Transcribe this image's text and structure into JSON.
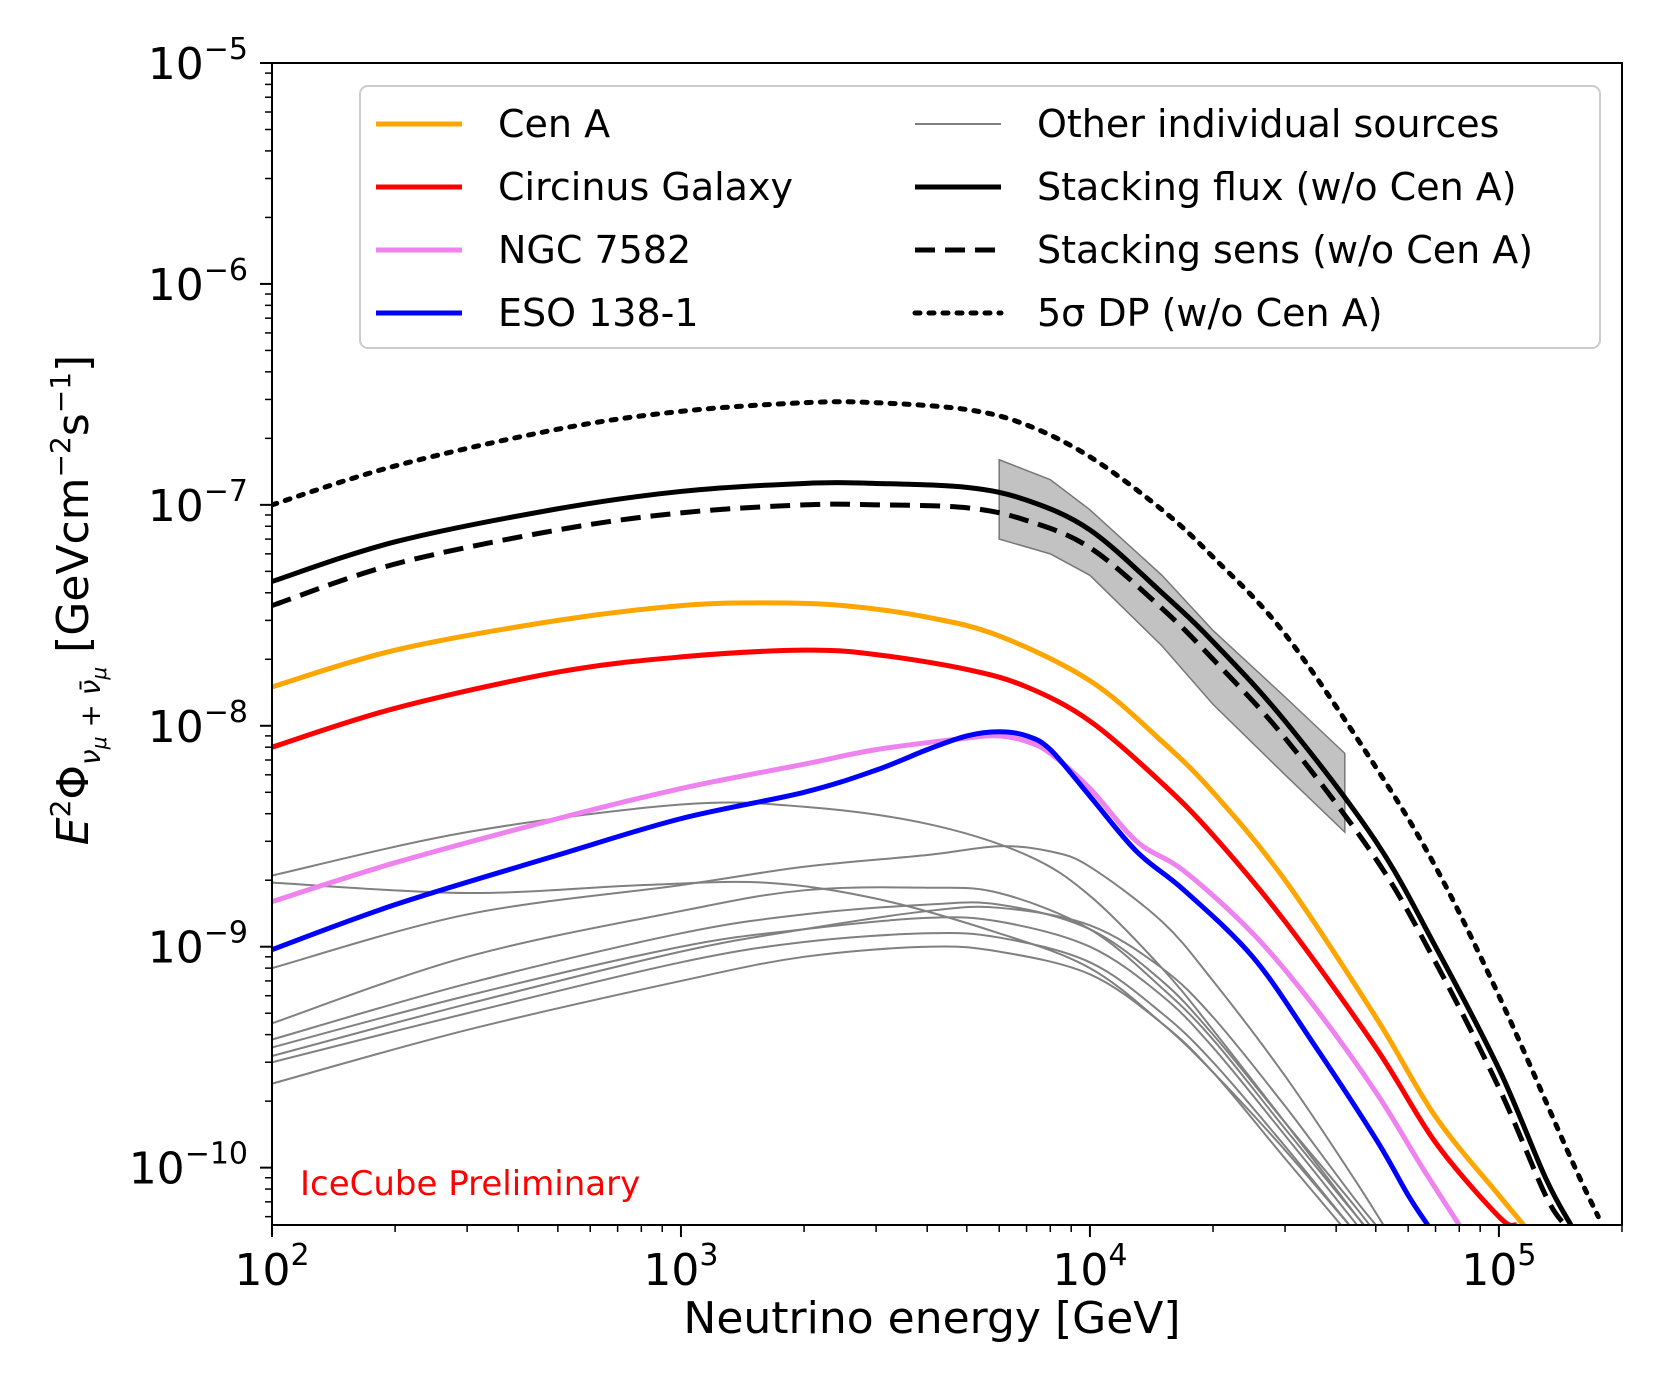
{
  "chart_data": {
    "type": "line",
    "title": "",
    "xlabel": "Neutrino energy [GeV]",
    "ylabel_parts": {
      "main": "E",
      "sup": "2",
      "phi": "Φ",
      "sub": "ν",
      "sub_mu1": "μ",
      "sub_plus": " + ",
      "sub_nubar": "ν̄",
      "sub_mu2": "μ",
      "units_open": " [GeVcm",
      "units_sup1": "−2",
      "units_mid": "s",
      "units_sup2": "−1",
      "units_close": "]"
    },
    "xscale": "log",
    "yscale": "log",
    "xlim": [
      100,
      200000
    ],
    "ylim": [
      5.5e-11,
      1e-05
    ],
    "xticks": [
      {
        "base": "10",
        "exp": "2",
        "value": 100
      },
      {
        "base": "10",
        "exp": "3",
        "value": 1000
      },
      {
        "base": "10",
        "exp": "4",
        "value": 10000
      },
      {
        "base": "10",
        "exp": "5",
        "value": 100000
      }
    ],
    "yticks": [
      {
        "base": "10",
        "exp": "−5",
        "value": 1e-05
      },
      {
        "base": "10",
        "exp": "−6",
        "value": 1e-06
      },
      {
        "base": "10",
        "exp": "−7",
        "value": 1e-07
      },
      {
        "base": "10",
        "exp": "−8",
        "value": 1e-08
      },
      {
        "base": "10",
        "exp": "−9",
        "value": 1e-09
      },
      {
        "base": "10",
        "exp": "−10",
        "value": 1e-10
      }
    ],
    "watermark": "IceCube Preliminary",
    "legend": {
      "placement": "top-right",
      "entries": [
        {
          "label": "Cen A",
          "series": "cen_a"
        },
        {
          "label": "Circinus Galaxy",
          "series": "circinus"
        },
        {
          "label": "NGC 7582",
          "series": "ngc7582"
        },
        {
          "label": "ESO 138-1",
          "series": "eso138"
        },
        {
          "label": "Other individual sources",
          "series": "other"
        },
        {
          "label": "Stacking flux (w/o Cen A)",
          "series": "stack_flux"
        },
        {
          "label": "Stacking sens (w/o Cen A)",
          "series": "stack_sens"
        },
        {
          "label": "5σ DP (w/o Cen A)",
          "series": "dp5"
        }
      ]
    },
    "band": {
      "name": "stacking-flux-uncertainty",
      "color": "#999999",
      "x": [
        6000,
        8000,
        10000,
        15000,
        20000,
        30000,
        42000
      ],
      "upper": [
        1.6e-07,
        1.3e-07,
        9.5e-08,
        4.8e-08,
        2.7e-08,
        1.35e-08,
        7.5e-09
      ],
      "lower": [
        7e-08,
        6e-08,
        4.8e-08,
        2.3e-08,
        1.25e-08,
        6e-09,
        3.3e-09
      ]
    },
    "series": [
      {
        "id": "dp5",
        "name": "5σ DP (w/o Cen A)",
        "color": "#000000",
        "style": "dotted",
        "x": [
          100,
          200,
          500,
          1000,
          2000,
          3000,
          5000,
          7000,
          10000,
          15000,
          20000,
          30000,
          50000,
          70000,
          100000,
          150000,
          175000
        ],
        "y": [
          1e-07,
          1.5e-07,
          2.2e-07,
          2.65e-07,
          2.9e-07,
          2.9e-07,
          2.7e-07,
          2.3e-07,
          1.65e-07,
          9.5e-08,
          5.8e-08,
          2.6e-08,
          6.5e-09,
          2.3e-09,
          6e-10,
          1.1e-10,
          6e-11
        ]
      },
      {
        "id": "stack_flux",
        "name": "Stacking flux (w/o Cen A)",
        "color": "#000000",
        "style": "solid",
        "x": [
          100,
          200,
          500,
          1000,
          2000,
          3000,
          5000,
          7000,
          10000,
          15000,
          20000,
          30000,
          50000,
          70000,
          100000,
          130000,
          150000
        ],
        "y": [
          4.5e-08,
          6.8e-08,
          9.6e-08,
          1.15e-07,
          1.25e-07,
          1.25e-07,
          1.2e-07,
          1.05e-07,
          7.7e-08,
          4e-08,
          2.4e-08,
          1.05e-08,
          3e-09,
          1e-09,
          2.8e-10,
          9e-11,
          5.5e-11
        ]
      },
      {
        "id": "stack_sens",
        "name": "Stacking sens (w/o Cen A)",
        "color": "#000000",
        "style": "dashed",
        "x": [
          100,
          200,
          500,
          1000,
          2000,
          3000,
          5000,
          7000,
          10000,
          15000,
          20000,
          30000,
          50000,
          70000,
          100000,
          130000,
          145000
        ],
        "y": [
          3.5e-08,
          5.4e-08,
          7.7e-08,
          9.2e-08,
          1e-07,
          1e-07,
          9.7e-08,
          8.5e-08,
          6.4e-08,
          3.4e-08,
          2e-08,
          8.8e-09,
          2.5e-09,
          8.5e-10,
          2.3e-10,
          7.5e-11,
          5.5e-11
        ]
      },
      {
        "id": "cen_a",
        "name": "Cen A",
        "color": "#ffa500",
        "style": "solid",
        "x": [
          100,
          200,
          500,
          1000,
          1600,
          2500,
          4000,
          6000,
          10000,
          15000,
          20000,
          30000,
          50000,
          70000,
          100000,
          115000
        ],
        "y": [
          1.5e-08,
          2.2e-08,
          3e-08,
          3.5e-08,
          3.6e-08,
          3.5e-08,
          3.1e-08,
          2.55e-08,
          1.6e-08,
          8.5e-09,
          5e-09,
          2e-09,
          4.8e-10,
          1.7e-10,
          7.5e-11,
          5.5e-11
        ]
      },
      {
        "id": "circinus",
        "name": "Circinus Galaxy",
        "color": "#ff0000",
        "style": "solid",
        "x": [
          100,
          200,
          500,
          1000,
          2000,
          3000,
          5000,
          7000,
          10000,
          15000,
          20000,
          30000,
          50000,
          70000,
          100000,
          110000
        ],
        "y": [
          8e-09,
          1.2e-08,
          1.75e-08,
          2.05e-08,
          2.2e-08,
          2.1e-08,
          1.8e-08,
          1.5e-08,
          1.05e-08,
          5.5e-09,
          3.2e-09,
          1.3e-09,
          3.5e-10,
          1.3e-10,
          6e-11,
          5.5e-11
        ]
      },
      {
        "id": "ngc7582",
        "name": "NGC 7582",
        "color": "#ee82ee",
        "style": "solid",
        "x": [
          100,
          200,
          500,
          1000,
          2000,
          3000,
          5000,
          6000,
          7000,
          8000,
          10000,
          13000,
          17000,
          25000,
          35000,
          50000,
          65000,
          80000
        ],
        "y": [
          1.6e-09,
          2.4e-09,
          3.8e-09,
          5.2e-09,
          6.7e-09,
          7.8e-09,
          8.8e-09,
          9e-09,
          8.5e-09,
          7.5e-09,
          5.2e-09,
          3e-09,
          2.2e-09,
          1.15e-09,
          5.5e-10,
          2.2e-10,
          1e-10,
          5.5e-11
        ]
      },
      {
        "id": "eso138",
        "name": "ESO 138-1",
        "color": "#0000ff",
        "style": "solid",
        "x": [
          100,
          200,
          500,
          1000,
          2000,
          3000,
          4000,
          5000,
          6000,
          7000,
          8000,
          10000,
          13000,
          17000,
          25000,
          35000,
          50000,
          60000,
          67000
        ],
        "y": [
          9.7e-10,
          1.55e-09,
          2.6e-09,
          3.8e-09,
          5e-09,
          6.3e-09,
          7.8e-09,
          9e-09,
          9.4e-09,
          9e-09,
          7.8e-09,
          4.8e-09,
          2.7e-09,
          1.8e-09,
          9e-10,
          3.7e-10,
          1.35e-10,
          7.5e-11,
          5.5e-11
        ]
      },
      {
        "id": "other1",
        "name": "Other individual sources",
        "color": "#808080",
        "style": "thin",
        "x": [
          100,
          300,
          1000,
          2000,
          4000,
          7000,
          10000,
          15000,
          20000,
          30000,
          45000,
          60000
        ],
        "y": [
          2.1e-09,
          3.3e-09,
          4.4e-09,
          4.3e-09,
          3.6e-09,
          2.6e-09,
          1.7e-09,
          8e-10,
          4.2e-10,
          1.6e-10,
          6e-11,
          3e-11
        ]
      },
      {
        "id": "other2",
        "name": "Other individual sources",
        "color": "#808080",
        "style": "thin",
        "x": [
          100,
          300,
          1000,
          2000,
          4000,
          6000,
          8000,
          10000,
          15000,
          20000,
          30000,
          45000,
          58000
        ],
        "y": [
          8e-10,
          1.4e-09,
          1.9e-09,
          2.3e-09,
          2.6e-09,
          2.85e-09,
          2.7e-09,
          2.3e-09,
          1.3e-09,
          7e-10,
          2.6e-10,
          8.5e-11,
          4e-11
        ]
      },
      {
        "id": "other3",
        "name": "Other individual sources",
        "color": "#808080",
        "style": "thin",
        "x": [
          100,
          300,
          1000,
          2000,
          4000,
          6000,
          10000,
          15000,
          20000,
          30000,
          45000,
          58000
        ],
        "y": [
          4.5e-10,
          9e-10,
          1.45e-09,
          1.8e-09,
          1.85e-09,
          1.75e-09,
          1.2e-09,
          6.5e-10,
          3.8e-10,
          1.5e-10,
          6e-11,
          3.5e-11
        ]
      },
      {
        "id": "other4",
        "name": "Other individual sources",
        "color": "#808080",
        "style": "thin",
        "x": [
          100,
          300,
          800,
          1600,
          3000,
          6000,
          10000,
          15000,
          20000,
          30000,
          45000,
          58000
        ],
        "y": [
          1.95e-09,
          1.75e-09,
          1.9e-09,
          1.95e-09,
          1.65e-09,
          1.15e-09,
          8e-10,
          4.5e-10,
          2.7e-10,
          1.2e-10,
          5e-11,
          3e-11
        ]
      },
      {
        "id": "other5",
        "name": "Other individual sources",
        "color": "#808080",
        "style": "thin",
        "x": [
          100,
          300,
          1000,
          2000,
          4000,
          6000,
          10000,
          15000,
          20000,
          30000,
          45000,
          58000
        ],
        "y": [
          3.8e-10,
          6.8e-10,
          1.15e-09,
          1.4e-09,
          1.55e-09,
          1.55e-09,
          1.2e-09,
          7e-10,
          4e-10,
          1.6e-10,
          6.5e-11,
          3.5e-11
        ]
      },
      {
        "id": "other6",
        "name": "Other individual sources",
        "color": "#808080",
        "style": "thin",
        "x": [
          100,
          300,
          1000,
          2000,
          4000,
          6000,
          10000,
          15000,
          20000,
          30000,
          45000,
          58000
        ],
        "y": [
          3.5e-10,
          6e-10,
          1e-09,
          1.2e-09,
          1.35e-09,
          1.3e-09,
          1e-09,
          6e-10,
          3.5e-10,
          1.4e-10,
          5.5e-11,
          3e-11
        ]
      },
      {
        "id": "other7",
        "name": "Other individual sources",
        "color": "#808080",
        "style": "thin",
        "x": [
          100,
          300,
          1000,
          2000,
          4000,
          6000,
          10000,
          15000,
          20000,
          30000,
          45000,
          58000
        ],
        "y": [
          3e-10,
          5e-10,
          8.5e-10,
          1.05e-09,
          1.15e-09,
          1.1e-09,
          8.5e-10,
          5e-10,
          3e-10,
          1.25e-10,
          5e-11,
          3e-11
        ]
      },
      {
        "id": "other8",
        "name": "Other individual sources",
        "color": "#808080",
        "style": "thin",
        "x": [
          100,
          300,
          1000,
          2000,
          4000,
          6000,
          10000,
          15000,
          20000,
          30000,
          45000,
          58000
        ],
        "y": [
          2.4e-10,
          4.2e-10,
          7e-10,
          9e-10,
          1e-09,
          9.5e-10,
          7.5e-10,
          4.5e-10,
          2.7e-10,
          1.1e-10,
          4.5e-11,
          2.5e-11
        ]
      },
      {
        "id": "other9",
        "name": "Other individual sources",
        "color": "#808080",
        "style": "thin",
        "x": [
          100,
          300,
          1000,
          2000,
          4000,
          6000,
          10000,
          15000,
          20000,
          30000,
          45000,
          58000
        ],
        "y": [
          3.2e-10,
          5.5e-10,
          9.5e-10,
          1.2e-09,
          1.45e-09,
          1.5e-09,
          1.25e-09,
          8e-10,
          4.8e-10,
          1.9e-10,
          7e-11,
          4e-11
        ]
      }
    ]
  }
}
